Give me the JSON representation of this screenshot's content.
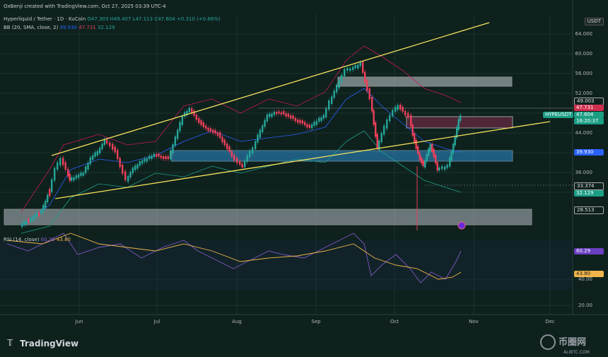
{
  "header": {
    "attribution": "OxBenji created with TradingView.com, Oct 27, 2025 03:39 UTC-4",
    "symbol": "Hyperliquid / Tether · 1D · KuCoin",
    "ohlc": [
      "O47.303",
      "H49.407",
      "L47.113",
      "C47.604",
      "+0.310 (+0.66%)"
    ],
    "bb": "BB (20, SMA, close, 2)",
    "bb_values": [
      "39.930",
      "47.731",
      "32.129"
    ]
  },
  "rsi": {
    "label": "RSI (14, close)",
    "values": [
      "60.29",
      "43.80"
    ]
  },
  "price_axis": {
    "unit": "USDT",
    "labels": [
      "64.000",
      "60.000",
      "56.000",
      "52.000",
      "44.000",
      "36.000"
    ]
  },
  "rsi_axis": [
    "40.00",
    "20.00"
  ],
  "tags": {
    "high": "49.003",
    "bb_upper": "47.731",
    "symbol": "HYPEUSDT",
    "last": "47.604",
    "countdown": "16:20:37",
    "bb_basis": "39.930",
    "level": "33.374",
    "bb_lower": "32.129",
    "support": "28.513",
    "rsi": "60.29",
    "rsi_ma": "43.80"
  },
  "time_axis": [
    "Jun",
    "Jul",
    "Aug",
    "Sep",
    "Oct",
    "Nov",
    "Dec"
  ],
  "logo": "TradingView",
  "watermark": {
    "name": "币圈网",
    "site": "ALIBTC.COM"
  }
}
